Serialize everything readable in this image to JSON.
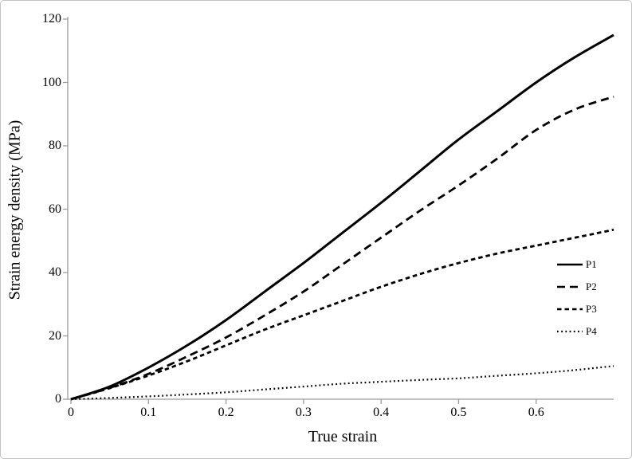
{
  "figure": {
    "background_color": "#ffffff",
    "border_color": "#c3c3c3"
  },
  "chart_data": {
    "type": "line",
    "title": "",
    "xlabel": "True strain",
    "ylabel": "Strain energy density (MPa)",
    "xlim": [
      0,
      0.7
    ],
    "ylim": [
      0,
      120
    ],
    "x_tick_labels": [
      "0",
      "0.1",
      "0.2",
      "0.3",
      "0.4",
      "0.5",
      "0.6"
    ],
    "x_tick_values": [
      0,
      0.1,
      0.2,
      0.3,
      0.4,
      0.5,
      0.6
    ],
    "y_tick_labels": [
      "0",
      "20",
      "40",
      "60",
      "80",
      "100",
      "120"
    ],
    "y_tick_values": [
      0,
      20,
      40,
      60,
      80,
      100,
      120
    ],
    "grid": false,
    "legend_position": "right-middle",
    "line_color": "#000000",
    "axis_color": "#9b9b9b",
    "x": [
      0,
      0.05,
      0.1,
      0.15,
      0.2,
      0.25,
      0.3,
      0.35,
      0.4,
      0.45,
      0.5,
      0.55,
      0.6,
      0.65,
      0.7
    ],
    "series": [
      {
        "name": "P1",
        "line_style": "solid",
        "values": [
          0,
          4,
          10,
          17,
          25,
          34,
          43,
          52.5,
          62,
          72,
          82,
          91,
          100,
          108,
          115
        ]
      },
      {
        "name": "P2",
        "line_style": "long-dash",
        "values": [
          0,
          3.6,
          8,
          13.5,
          19.5,
          26.5,
          34,
          42.5,
          51,
          59.5,
          67.5,
          76,
          85,
          91.5,
          95.5
        ]
      },
      {
        "name": "P3",
        "line_style": "medium-dash",
        "values": [
          0,
          3.5,
          7.5,
          12,
          17,
          22,
          26.5,
          31,
          35.5,
          39.5,
          43,
          46,
          48.5,
          51,
          53.5
        ]
      },
      {
        "name": "P4",
        "line_style": "dot",
        "values": [
          0,
          0.4,
          0.9,
          1.5,
          2.2,
          3.1,
          4,
          4.9,
          5.5,
          6.1,
          6.6,
          7.4,
          8.2,
          9.2,
          10.5
        ]
      }
    ]
  }
}
